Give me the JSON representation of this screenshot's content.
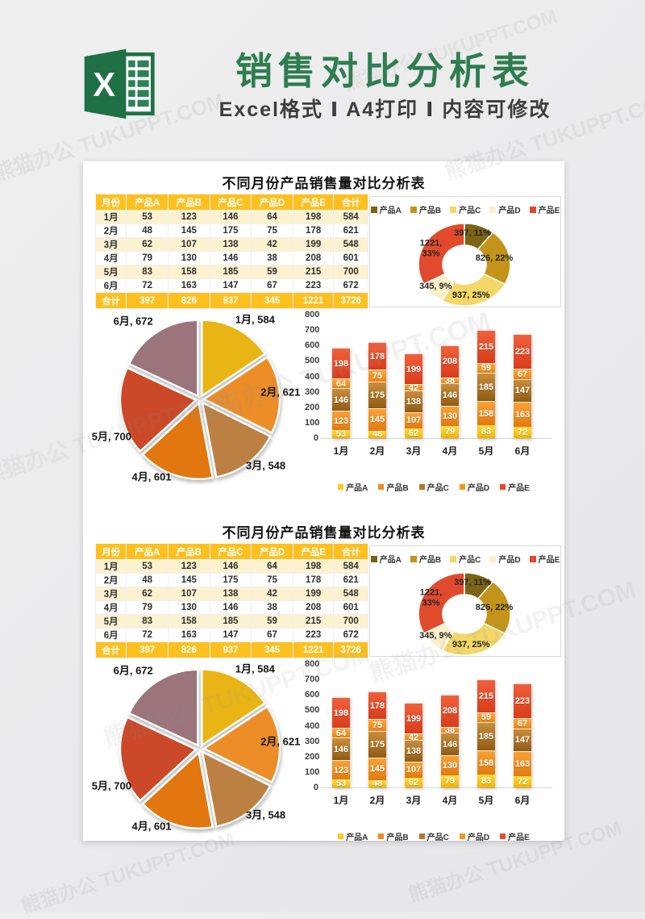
{
  "watermark": {
    "text": "熊猫办公 TUKUPPT.COM"
  },
  "header": {
    "title": "销售对比分析表",
    "subtitle": "Excel格式 Ⅰ A4打印 Ⅰ 内容可修改",
    "logo": {
      "letter": "X",
      "green_dark": "#1f7145",
      "green_cell": "#2e8157"
    }
  },
  "sections": [
    {
      "title": "不同月份产品销售量对比分析表"
    },
    {
      "title": "不同月份产品销售量对比分析表"
    }
  ],
  "table": {
    "headers": [
      "月份",
      "产品A",
      "产品B",
      "产品C",
      "产品D",
      "产品E",
      "合计"
    ],
    "rows": [
      [
        "1月",
        "53",
        "123",
        "146",
        "64",
        "198",
        "584"
      ],
      [
        "2月",
        "48",
        "145",
        "175",
        "75",
        "178",
        "621"
      ],
      [
        "3月",
        "62",
        "107",
        "138",
        "42",
        "199",
        "548"
      ],
      [
        "4月",
        "79",
        "130",
        "146",
        "38",
        "208",
        "601"
      ],
      [
        "5月",
        "83",
        "158",
        "185",
        "59",
        "215",
        "700"
      ],
      [
        "6月",
        "72",
        "163",
        "147",
        "67",
        "223",
        "672"
      ]
    ],
    "total_row": [
      "合计",
      "397",
      "826",
      "937",
      "345",
      "1221",
      "3726"
    ],
    "header_bg": "#fdc01f",
    "odd_row_bg": "#fcf2d0"
  },
  "chart_data": [
    {
      "id": "product-share-donut",
      "type": "pie",
      "subtype": "donut",
      "legend_position": "top",
      "categories": [
        "产品A",
        "产品B",
        "产品C",
        "产品D",
        "产品E"
      ],
      "values": [
        397,
        826,
        937,
        345,
        1221
      ],
      "percents": [
        11,
        22,
        25,
        9,
        33
      ],
      "labels": [
        "397, 11%",
        "826, 22%",
        "937, 25%",
        "345, 9%",
        "1221,\n33%"
      ],
      "colors": [
        "#7c6315",
        "#c3931a",
        "#f3d767",
        "#fcf0c8",
        "#e14a2d"
      ]
    },
    {
      "id": "monthly-total-pie",
      "type": "pie",
      "subtype": "exploded",
      "categories": [
        "1月",
        "2月",
        "3月",
        "4月",
        "5月",
        "6月"
      ],
      "values": [
        584,
        621,
        548,
        601,
        700,
        672
      ],
      "labels": [
        "1月, 584",
        "2月, 621",
        "3月, 548",
        "4月, 601",
        "5月, 700",
        "6月, 672"
      ],
      "colors": [
        "#e9b515",
        "#ec8d28",
        "#bc8142",
        "#e1770e",
        "#cb4828",
        "#9b747c"
      ]
    },
    {
      "id": "monthly-stacked-bar",
      "type": "bar",
      "stacked": true,
      "legend_position": "bottom",
      "categories": [
        "1月",
        "2月",
        "3月",
        "4月",
        "5月",
        "6月"
      ],
      "series": [
        {
          "name": "产品A",
          "values": [
            53,
            48,
            62,
            79,
            83,
            72
          ],
          "color": "#ffc91e",
          "gradient": [
            "#ffdc3c",
            "#f2b300"
          ]
        },
        {
          "name": "产品B",
          "values": [
            123,
            145,
            107,
            130,
            158,
            163
          ],
          "color": "#f08c1c",
          "gradient": [
            "#f9a236",
            "#e2790f"
          ]
        },
        {
          "name": "产品C",
          "values": [
            146,
            175,
            138,
            146,
            185,
            147
          ],
          "color": "#b5772a",
          "gradient": [
            "#c98d3c",
            "#8f5c14"
          ]
        },
        {
          "name": "产品D",
          "values": [
            64,
            75,
            42,
            38,
            59,
            67
          ],
          "color": "#f5961f",
          "gradient": [
            "#f9a83e",
            "#ed8310"
          ]
        },
        {
          "name": "产品E",
          "values": [
            198,
            178,
            199,
            208,
            215,
            223
          ],
          "color": "#e64a28",
          "gradient": [
            "#f1603a",
            "#d93c1c"
          ]
        }
      ],
      "ylim": [
        0,
        800
      ],
      "yticks": [
        0,
        100,
        200,
        300,
        400,
        500,
        600,
        700,
        800
      ],
      "grid": false
    }
  ]
}
